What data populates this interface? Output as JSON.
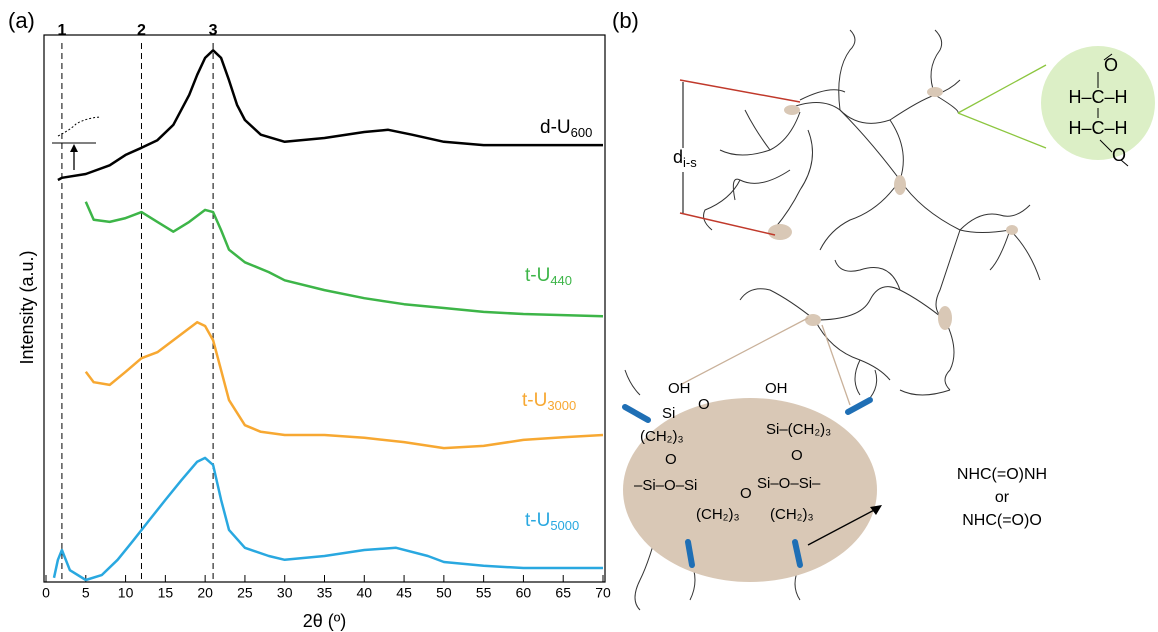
{
  "panel_labels": [
    "(a)",
    "(b)"
  ],
  "chart_data": {
    "type": "line",
    "xlabel": "2θ (º)",
    "ylabel": "Intensity (a.u.)",
    "xlim": [
      0,
      70
    ],
    "xticks": [
      0,
      5,
      10,
      15,
      20,
      25,
      30,
      35,
      40,
      45,
      50,
      55,
      60,
      65,
      70
    ],
    "ylim": [
      0,
      100
    ],
    "vlines": [
      {
        "x": 2,
        "label": "1"
      },
      {
        "x": 12,
        "label": "2"
      },
      {
        "x": 21,
        "label": "3"
      }
    ],
    "series": [
      {
        "name": "d-U",
        "subscript": "600",
        "color": "#000000",
        "x": [
          1.5,
          2,
          5,
          8,
          10,
          12,
          14,
          16,
          18,
          19,
          20,
          21,
          22,
          23,
          24,
          25,
          27,
          30,
          35,
          40,
          43,
          46,
          50,
          55,
          60,
          65,
          70
        ],
        "values": [
          73.4,
          73.8,
          74.5,
          76.1,
          78.0,
          79.3,
          80.7,
          83.5,
          89.0,
          92.7,
          95.8,
          97.2,
          95.8,
          91.7,
          87.2,
          84.4,
          81.7,
          80.4,
          81.1,
          82.2,
          82.6,
          81.7,
          80.4,
          79.8,
          79.8,
          79.8,
          79.8
        ]
      },
      {
        "name": "t-U",
        "subscript": "440",
        "color": "#3db548",
        "x": [
          5,
          6,
          8,
          10,
          12,
          14,
          16,
          18,
          20,
          21,
          22,
          23,
          25,
          28,
          30,
          35,
          40,
          45,
          50,
          55,
          60,
          65,
          70
        ],
        "values": [
          69.4,
          66.1,
          65.7,
          66.4,
          67.5,
          65.7,
          63.9,
          65.7,
          67.9,
          67.5,
          64.2,
          60.6,
          58.3,
          56.5,
          55.0,
          53.2,
          51.7,
          50.6,
          49.9,
          49.2,
          48.8,
          48.6,
          48.4
        ]
      },
      {
        "name": "t-U",
        "subscript": "3000",
        "color": "#f7a832",
        "x": [
          5,
          6,
          8,
          10,
          12,
          14,
          16,
          18,
          19,
          20,
          21,
          22,
          23,
          25,
          27,
          30,
          35,
          40,
          45,
          50,
          55,
          60,
          65,
          70
        ],
        "values": [
          38.2,
          36.3,
          35.8,
          38.2,
          40.7,
          41.8,
          44.0,
          46.2,
          47.3,
          46.6,
          44.0,
          38.5,
          33.0,
          28.4,
          27.2,
          26.6,
          26.6,
          26.1,
          25.3,
          24.2,
          24.6,
          25.7,
          26.2,
          26.6
        ]
      },
      {
        "name": "t-U",
        "subscript": "5000",
        "color": "#29a8e0",
        "x": [
          1,
          1.5,
          2,
          3,
          5,
          7,
          9,
          11,
          13,
          15,
          17,
          19,
          20,
          21,
          22,
          23,
          25,
          28,
          30,
          35,
          40,
          44,
          48,
          50,
          55,
          60,
          65,
          70
        ],
        "values": [
          0.4,
          3.7,
          5.5,
          1.8,
          0,
          0.9,
          3.7,
          7.3,
          11.0,
          14.7,
          18.3,
          21.7,
          22.4,
          21.1,
          14.7,
          9.2,
          5.9,
          4.4,
          3.7,
          4.4,
          5.5,
          5.9,
          4.4,
          3.3,
          2.6,
          2.2,
          2.2,
          2.2
        ]
      }
    ]
  },
  "diagram": {
    "distance_label": "d",
    "distance_subscript": "i-s",
    "glycol_labels": [
      "O",
      "H–C–H",
      "H–C–H",
      "O"
    ],
    "siloxane_labels": [
      "OH",
      "OH",
      "Si",
      "O",
      "Si–(CH₂)₃",
      "(CH₂)₃",
      "O",
      "O",
      "–Si–O–Si",
      "O",
      "Si–O–Si–",
      "(CH₂)₃",
      "(CH₂)₃"
    ],
    "linkage_labels": [
      "NHC(=O)NH",
      "or",
      "NHC(=O)O"
    ]
  }
}
